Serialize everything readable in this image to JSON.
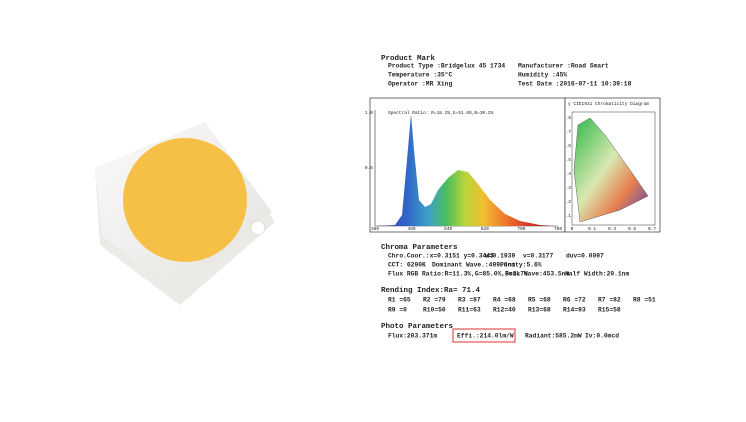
{
  "product_mark": {
    "title": "Product Mark",
    "rows": [
      [
        "Product Type :Bridgelux 45 1734",
        "Manufacturer :Road Smart"
      ],
      [
        "Temperature :35°C",
        "Humidity :45%"
      ],
      [
        "Operator :MR Xing",
        "Test Date :2016-07-11 10:39:18"
      ]
    ]
  },
  "spectrum": {
    "ratio": "Spectral Ratio: R=18.2%,G=51.6%,B=30.2%",
    "y_labels": [
      "1.0",
      "0.5"
    ],
    "x_labels": [
      "380",
      "460",
      "540",
      "620",
      "700",
      "780"
    ]
  },
  "cie": {
    "title": "y CIE1931 Chromaticity Diagram",
    "y_labels": [
      ".8",
      ".7",
      ".6",
      ".5",
      ".4",
      ".3",
      ".2",
      ".1"
    ],
    "x_labels": [
      "0",
      "0.1",
      "0.3",
      "0.5",
      "0.7"
    ]
  },
  "chroma": {
    "title": "Chroma Parameters",
    "lines": [
      [
        "Chro.Coor.:x=0.3151 y=0.3443",
        "u=0.1939",
        "v=0.3177",
        "duv=0.0097"
      ],
      [
        "CCT: 6290K",
        "Dominant Wave.:499.6nm",
        "Purity:5.6%"
      ],
      [
        "Flux RGB Ratio:R=11.3%,G=85.0%,B=3.7%",
        "Peak Wave:453.5nm",
        "Half Width:20.1nm"
      ]
    ]
  },
  "rendering": {
    "title": "Rending Index:Ra= 71.4",
    "rows": [
      [
        "R1 =65",
        "R2 =79",
        "R3 =87",
        "R4 =68",
        "R5 =68",
        "R6 =72",
        "R7 =82",
        "R8 =51"
      ],
      [
        "R9 =0",
        "R10=50",
        "R11=63",
        "R12=40",
        "R13=68",
        "R14=93",
        "R15=58"
      ]
    ]
  },
  "photo": {
    "title": "Photo Parameters",
    "items": [
      "Flux:203.371m",
      "Effi.:214.0lm/W",
      "Radiant:585.2mW",
      "Iv:0.0mcd"
    ]
  }
}
